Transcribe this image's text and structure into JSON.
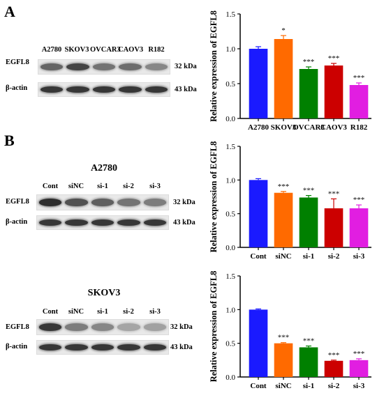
{
  "panels": [
    {
      "letter": "A",
      "blot": {
        "title": "",
        "lanes": [
          "A2780",
          "SKOV3",
          "OVCAR3",
          "CAOV3",
          "R182"
        ],
        "rows": [
          {
            "label": "EGFL8",
            "kda": "32 kDa",
            "intensity": [
              0.62,
              0.78,
              0.55,
              0.58,
              0.45
            ]
          },
          {
            "label": "β-actin",
            "kda": "43 kDa",
            "intensity": [
              0.85,
              0.85,
              0.85,
              0.85,
              0.85
            ]
          }
        ]
      }
    },
    {
      "letter": "B",
      "blot": {
        "title": "A2780",
        "lanes": [
          "Cont",
          "siNC",
          "si-1",
          "si-2",
          "si-3"
        ],
        "rows": [
          {
            "label": "EGFL8",
            "kda": "32 kDa",
            "intensity": [
              0.9,
              0.72,
              0.65,
              0.55,
              0.5
            ]
          },
          {
            "label": "β-actin",
            "kda": "43 kDa",
            "intensity": [
              0.85,
              0.85,
              0.85,
              0.85,
              0.85
            ]
          }
        ]
      }
    },
    {
      "letter": "",
      "blot": {
        "title": "SKOV3",
        "lanes": [
          "Cont",
          "siNC",
          "si-1",
          "si-2",
          "si-3"
        ],
        "rows": [
          {
            "label": "EGFL8",
            "kda": "32 kDa",
            "intensity": [
              0.85,
              0.5,
              0.45,
              0.3,
              0.32
            ]
          },
          {
            "label": "β-actin",
            "kda": "43 kDa",
            "intensity": [
              0.85,
              0.85,
              0.85,
              0.85,
              0.85
            ]
          }
        ]
      }
    }
  ],
  "chart_data": [
    {
      "type": "bar",
      "title": "",
      "xlabel": "",
      "ylabel": "Relative expression of EGFL8",
      "ylim": [
        0,
        1.5
      ],
      "yticks": [
        "0.0",
        "0.5",
        "1.0",
        "1.5"
      ],
      "categories": [
        "A2780",
        "SKOV3",
        "OVCAR3",
        "CAOV3",
        "R182"
      ],
      "values": [
        1.0,
        1.14,
        0.71,
        0.76,
        0.48
      ],
      "errors": [
        0.03,
        0.05,
        0.03,
        0.03,
        0.03
      ],
      "significance": [
        "",
        "*",
        "***",
        "***",
        "***"
      ],
      "colors": [
        "#1a1aff",
        "#ff6a00",
        "#008000",
        "#cc0000",
        "#e11ee1"
      ]
    },
    {
      "type": "bar",
      "title": "",
      "xlabel": "",
      "ylabel": "Relative expression of EGFL8",
      "ylim": [
        0,
        1.5
      ],
      "yticks": [
        "0.0",
        "0.5",
        "1.0",
        "1.5"
      ],
      "categories": [
        "Cont",
        "siNC",
        "si-1",
        "si-2",
        "si-3"
      ],
      "values": [
        1.0,
        0.81,
        0.74,
        0.58,
        0.58
      ],
      "errors": [
        0.02,
        0.02,
        0.03,
        0.14,
        0.05
      ],
      "significance": [
        "",
        "***",
        "***",
        "***",
        "***"
      ],
      "colors": [
        "#1a1aff",
        "#ff6a00",
        "#008000",
        "#cc0000",
        "#e11ee1"
      ]
    },
    {
      "type": "bar",
      "title": "",
      "xlabel": "",
      "ylabel": "Relative expression of EGFL8",
      "ylim": [
        0,
        1.5
      ],
      "yticks": [
        "0.0",
        "0.5",
        "1.0",
        "1.5"
      ],
      "categories": [
        "Cont",
        "siNC",
        "si-1",
        "si-2",
        "si-3"
      ],
      "values": [
        1.0,
        0.5,
        0.44,
        0.24,
        0.25
      ],
      "errors": [
        0.01,
        0.01,
        0.02,
        0.01,
        0.02
      ],
      "significance": [
        "",
        "***",
        "***",
        "***",
        "***"
      ],
      "colors": [
        "#1a1aff",
        "#ff6a00",
        "#008000",
        "#cc0000",
        "#e11ee1"
      ]
    }
  ]
}
